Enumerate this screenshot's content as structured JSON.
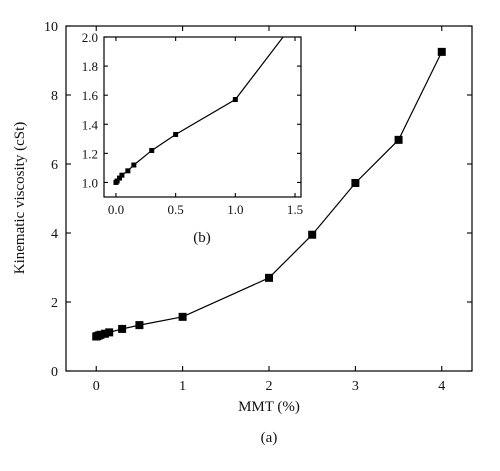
{
  "chart_data": [
    {
      "panel": "main",
      "type": "line",
      "xlabel": "MMT (%)",
      "ylabel": "Kinematic viscosity (cSt)",
      "caption": "(a)",
      "xlim": [
        -0.35,
        4.35
      ],
      "ylim": [
        0,
        10
      ],
      "xticks": [
        "0",
        "1",
        "2",
        "3",
        "4"
      ],
      "yticks": [
        "0",
        "2",
        "4",
        "6",
        "8",
        "10"
      ],
      "grid": false,
      "x": [
        0.0,
        0.01,
        0.03,
        0.05,
        0.1,
        0.15,
        0.3,
        0.5,
        1.0,
        2.0,
        2.5,
        3.0,
        3.5,
        4.0
      ],
      "y": [
        1.0,
        1.01,
        1.03,
        1.05,
        1.08,
        1.12,
        1.22,
        1.33,
        1.57,
        2.7,
        3.95,
        5.45,
        6.7,
        9.25
      ]
    },
    {
      "panel": "inset",
      "type": "line",
      "caption": "(b)",
      "xlim": [
        -0.1,
        1.55
      ],
      "ylim": [
        0.9,
        2.0
      ],
      "xticks": [
        "0.0",
        "0.5",
        "1.0",
        "1.5"
      ],
      "yticks": [
        "1.0",
        "1.2",
        "1.4",
        "1.6",
        "1.8",
        "2.0"
      ],
      "grid": false,
      "x": [
        0.0,
        0.01,
        0.03,
        0.05,
        0.1,
        0.15,
        0.3,
        0.5,
        1.0,
        1.4
      ],
      "y": [
        1.0,
        1.01,
        1.03,
        1.05,
        1.08,
        1.12,
        1.22,
        1.33,
        1.57,
        2.0
      ]
    }
  ]
}
